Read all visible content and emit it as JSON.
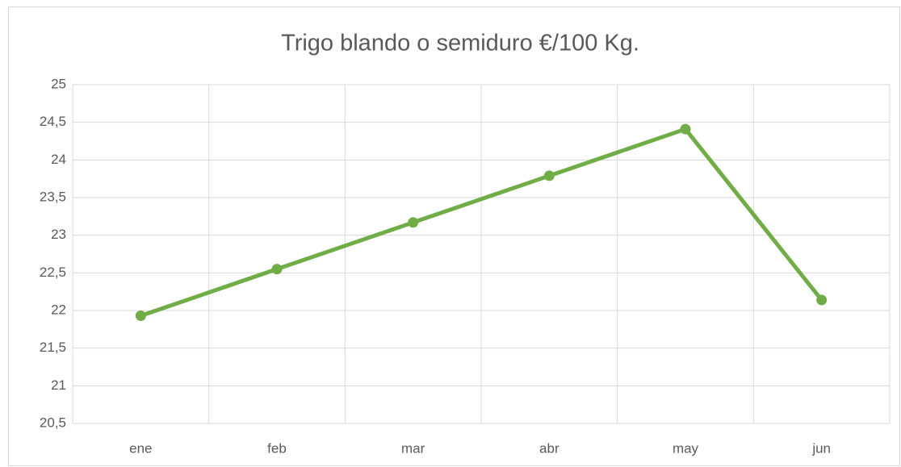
{
  "chart_data": {
    "type": "line",
    "title": "Trigo blando o semiduro €/100 Kg.",
    "categories": [
      "ene",
      "feb",
      "mar",
      "abr",
      "may",
      "jun"
    ],
    "series": [
      {
        "name": "Trigo blando o semiduro €/100 Kg.",
        "color": "#70ad47",
        "values": [
          21.93,
          22.55,
          23.17,
          23.79,
          24.41,
          22.14
        ]
      }
    ],
    "ylim": [
      20.5,
      25
    ],
    "yticks": [
      {
        "value": 20.5,
        "label": "20,5"
      },
      21,
      {
        "value": 21.5,
        "label": "21,5"
      },
      22,
      {
        "value": 22.5,
        "label": "22,5"
      },
      23,
      {
        "value": 23.5,
        "label": "23,5"
      },
      24,
      {
        "value": 24.5,
        "label": "24,5"
      },
      25
    ],
    "grid": true
  }
}
